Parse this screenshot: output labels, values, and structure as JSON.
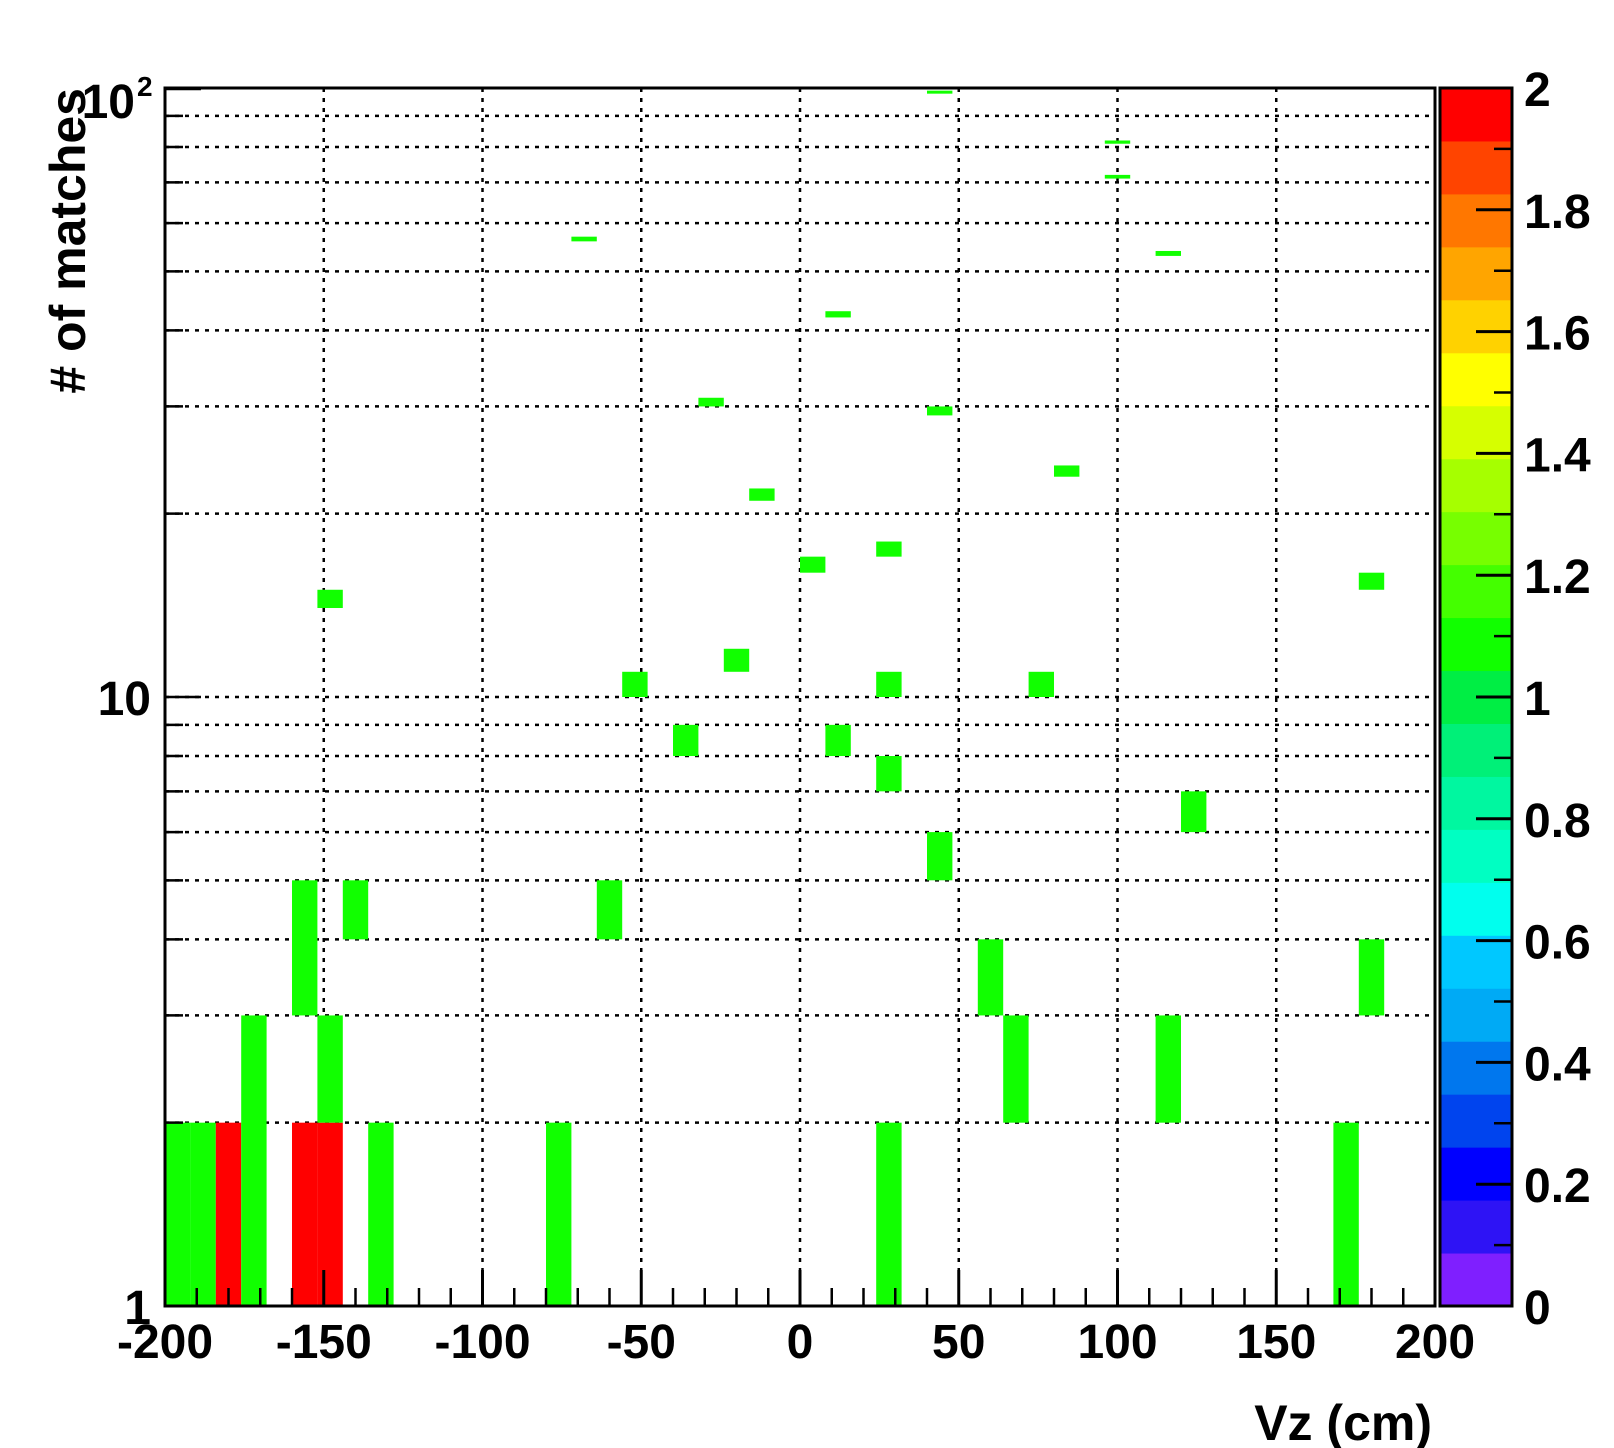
{
  "chart_data": {
    "type": "heatmap",
    "xlabel": "Vz (cm)",
    "ylabel": "# of matches",
    "xlim": [
      -200,
      200
    ],
    "ylim": [
      1,
      100
    ],
    "y_scale": "log",
    "grid": true,
    "x_ticks": [
      "-200",
      "-150",
      "-100",
      "-50",
      "0",
      "50",
      "100",
      "150",
      "200"
    ],
    "x_tick_values": [
      -200,
      -150,
      -100,
      -50,
      0,
      50,
      100,
      150,
      200
    ],
    "y_ticks": [
      {
        "value": 1,
        "base": "1",
        "exp": ""
      },
      {
        "value": 10,
        "base": "10",
        "exp": ""
      },
      {
        "value": 100,
        "base": "10",
        "exp": "2"
      }
    ],
    "bin_width": 8,
    "colorbar": {
      "min": 0,
      "max": 2,
      "ticks": [
        "0",
        "0.2",
        "0.4",
        "0.6",
        "0.8",
        "1",
        "1.2",
        "1.4",
        "1.6",
        "1.8",
        "2"
      ],
      "tick_values": [
        0,
        0.2,
        0.4,
        0.6,
        0.8,
        1,
        1.2,
        1.4,
        1.6,
        1.8,
        2
      ],
      "colors": [
        "#7f1fff",
        "#2e13f5",
        "#0000ff",
        "#0044ee",
        "#0077ee",
        "#00aaf5",
        "#00c8ff",
        "#00ffee",
        "#00ffc2",
        "#00f7a0",
        "#00f078",
        "#00ee44",
        "#11ff00",
        "#44ff00",
        "#77ff00",
        "#a6ff00",
        "#d6ff00",
        "#ffff00",
        "#ffd200",
        "#ffa500",
        "#ff7700",
        "#ff4400",
        "#ff0000"
      ]
    },
    "cells": [
      {
        "x": -196,
        "y": [
          1,
          2
        ],
        "value": 1
      },
      {
        "x": -188,
        "y": [
          1,
          2
        ],
        "value": 1
      },
      {
        "x": -180,
        "y": [
          1,
          2
        ],
        "value": 2
      },
      {
        "x": -172,
        "y": [
          1,
          3
        ],
        "value": 1
      },
      {
        "x": -156,
        "y": [
          1,
          2
        ],
        "value": 2
      },
      {
        "x": -148,
        "y": [
          1,
          2
        ],
        "value": 2
      },
      {
        "x": -148,
        "y": [
          2,
          3
        ],
        "value": 1
      },
      {
        "x": -132,
        "y": [
          1,
          2
        ],
        "value": 1
      },
      {
        "x": -76,
        "y": [
          1,
          2
        ],
        "value": 1
      },
      {
        "x": 28,
        "y": [
          1,
          2
        ],
        "value": 1
      },
      {
        "x": 172,
        "y": [
          1,
          2
        ],
        "value": 1
      },
      {
        "x": -156,
        "y": [
          3,
          5
        ],
        "value": 1
      },
      {
        "x": -140,
        "y": [
          4,
          5
        ],
        "value": 1
      },
      {
        "x": -60,
        "y": [
          4,
          5
        ],
        "value": 1
      },
      {
        "x": 60,
        "y": [
          3,
          4
        ],
        "value": 1
      },
      {
        "x": 68,
        "y": [
          2,
          3
        ],
        "value": 1
      },
      {
        "x": 116,
        "y": [
          2,
          3
        ],
        "value": 1
      },
      {
        "x": 180,
        "y": [
          3,
          4
        ],
        "value": 1
      },
      {
        "x": 44,
        "y": [
          5,
          6
        ],
        "value": 1
      },
      {
        "x": 124,
        "y": [
          6,
          7
        ],
        "value": 1
      },
      {
        "x": 28,
        "y": [
          7,
          8
        ],
        "value": 1
      },
      {
        "x": -36,
        "y": [
          8,
          9
        ],
        "value": 1
      },
      {
        "x": 12,
        "y": [
          8,
          9
        ],
        "value": 1
      },
      {
        "x": -52,
        "y": [
          10,
          11
        ],
        "value": 1
      },
      {
        "x": 28,
        "y": [
          10,
          11
        ],
        "value": 1
      },
      {
        "x": 76,
        "y": [
          10,
          11
        ],
        "value": 1
      },
      {
        "x": -20,
        "y": [
          11,
          12
        ],
        "value": 1
      },
      {
        "x": -148,
        "y": [
          14,
          15
        ],
        "value": 1
      },
      {
        "x": 4,
        "y": [
          16,
          17
        ],
        "value": 1
      },
      {
        "x": 28,
        "y": [
          17,
          18
        ],
        "value": 1
      },
      {
        "x": 180,
        "y": [
          15,
          16
        ],
        "value": 1
      },
      {
        "x": -12,
        "y": [
          21,
          22
        ],
        "value": 1
      },
      {
        "x": 84,
        "y": [
          23,
          24
        ],
        "value": 1
      },
      {
        "x": -28,
        "y": [
          30,
          31
        ],
        "value": 1
      },
      {
        "x": 44,
        "y": [
          29,
          30
        ],
        "value": 1
      },
      {
        "x": 12,
        "y": [
          42,
          43
        ],
        "value": 1
      },
      {
        "x": -68,
        "y": [
          56,
          57
        ],
        "value": 1
      },
      {
        "x": 116,
        "y": [
          53,
          54
        ],
        "value": 1
      },
      {
        "x": 100,
        "y": [
          71,
          72
        ],
        "value": 1
      },
      {
        "x": 100,
        "y": [
          81,
          82
        ],
        "value": 1
      },
      {
        "x": 44,
        "y": [
          98,
          99
        ],
        "value": 1
      }
    ]
  }
}
